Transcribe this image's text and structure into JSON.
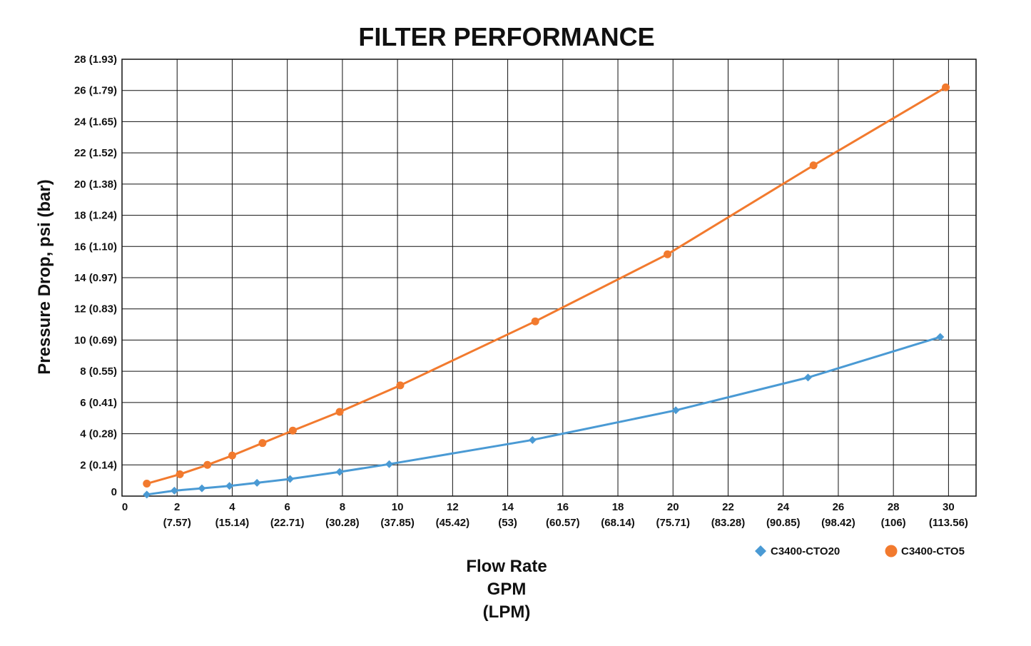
{
  "chart_data": {
    "type": "line",
    "title": "FILTER PERFORMANCE",
    "ylabel": "Pressure Drop, psi (bar)",
    "xlabel_lines": [
      "Flow Rate",
      "GPM",
      "(LPM)"
    ],
    "xlim": [
      0,
      31
    ],
    "ylim": [
      0,
      28
    ],
    "grid": true,
    "legend_position": "bottom-right",
    "x_ticks": [
      {
        "value": 0,
        "label": "0",
        "sub": ""
      },
      {
        "value": 2,
        "label": "2",
        "sub": "(7.57)"
      },
      {
        "value": 4,
        "label": "4",
        "sub": "(15.14)"
      },
      {
        "value": 6,
        "label": "6",
        "sub": "(22.71)"
      },
      {
        "value": 8,
        "label": "8",
        "sub": "(30.28)"
      },
      {
        "value": 10,
        "label": "10",
        "sub": "(37.85)"
      },
      {
        "value": 12,
        "label": "12",
        "sub": "(45.42)"
      },
      {
        "value": 14,
        "label": "14",
        "sub": "(53)"
      },
      {
        "value": 16,
        "label": "16",
        "sub": "(60.57)"
      },
      {
        "value": 18,
        "label": "18",
        "sub": "(68.14)"
      },
      {
        "value": 20,
        "label": "20",
        "sub": "(75.71)"
      },
      {
        "value": 22,
        "label": "22",
        "sub": "(83.28)"
      },
      {
        "value": 24,
        "label": "24",
        "sub": "(90.85)"
      },
      {
        "value": 26,
        "label": "26",
        "sub": "(98.42)"
      },
      {
        "value": 28,
        "label": "28",
        "sub": "(106)"
      },
      {
        "value": 30,
        "label": "30",
        "sub": "(113.56)"
      }
    ],
    "y_ticks": [
      {
        "value": 0,
        "label": "0"
      },
      {
        "value": 2,
        "label": "2 (0.14)"
      },
      {
        "value": 4,
        "label": "4 (0.28)"
      },
      {
        "value": 6,
        "label": "6 (0.41)"
      },
      {
        "value": 8,
        "label": "8 (0.55)"
      },
      {
        "value": 10,
        "label": "10 (0.69)"
      },
      {
        "value": 12,
        "label": "12 (0.83)"
      },
      {
        "value": 14,
        "label": "14 (0.97)"
      },
      {
        "value": 16,
        "label": "16 (1.10)"
      },
      {
        "value": 18,
        "label": "18 (1.24)"
      },
      {
        "value": 20,
        "label": "20 (1.38)"
      },
      {
        "value": 22,
        "label": "22 (1.52)"
      },
      {
        "value": 24,
        "label": "24 (1.65)"
      },
      {
        "value": 26,
        "label": "26 (1.79)"
      },
      {
        "value": 28,
        "label": "28 (1.93)"
      }
    ],
    "series": [
      {
        "name": "C3400-CTO20",
        "color": "#4a9ad4",
        "marker": "diamond",
        "points": [
          {
            "x": 0.9,
            "y": 0.1
          },
          {
            "x": 1.9,
            "y": 0.35
          },
          {
            "x": 2.9,
            "y": 0.5
          },
          {
            "x": 3.9,
            "y": 0.65
          },
          {
            "x": 4.9,
            "y": 0.85
          },
          {
            "x": 6.1,
            "y": 1.1
          },
          {
            "x": 7.9,
            "y": 1.55
          },
          {
            "x": 9.7,
            "y": 2.05
          },
          {
            "x": 14.9,
            "y": 3.6
          },
          {
            "x": 20.1,
            "y": 5.5
          },
          {
            "x": 24.9,
            "y": 7.6
          },
          {
            "x": 29.7,
            "y": 10.2
          }
        ]
      },
      {
        "name": "C3400-CTO5",
        "color": "#f27a2e",
        "marker": "circle",
        "points": [
          {
            "x": 0.9,
            "y": 0.8
          },
          {
            "x": 2.1,
            "y": 1.4
          },
          {
            "x": 3.1,
            "y": 2.0
          },
          {
            "x": 4.0,
            "y": 2.6
          },
          {
            "x": 5.1,
            "y": 3.4
          },
          {
            "x": 6.2,
            "y": 4.2
          },
          {
            "x": 7.9,
            "y": 5.4
          },
          {
            "x": 10.1,
            "y": 7.1
          },
          {
            "x": 15.0,
            "y": 11.2
          },
          {
            "x": 19.8,
            "y": 15.5
          },
          {
            "x": 25.1,
            "y": 21.2
          },
          {
            "x": 29.9,
            "y": 26.2
          }
        ]
      }
    ]
  }
}
